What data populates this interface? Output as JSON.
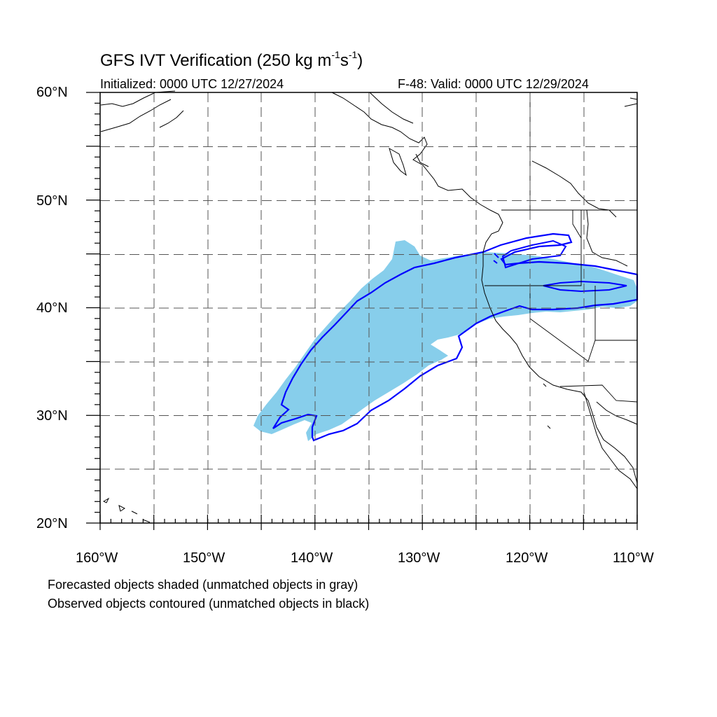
{
  "title": {
    "main": "GFS IVT Verification (250 kg m",
    "exp1": "-1",
    "mid": "s",
    "exp2": "-1",
    "close": ")"
  },
  "initialized": "Initialized: 0000 UTC 12/27/2024",
  "valid": "F-48: Valid: 0000 UTC 12/29/2024",
  "footnotes": {
    "line1": "Forecasted objects shaded (unmatched objects in gray)",
    "line2": "Observed objects contoured (unmatched objects in black)"
  },
  "axes": {
    "lat_labels": [
      "60°N",
      "50°N",
      "40°N",
      "30°N",
      "20°N"
    ],
    "lon_labels": [
      "160°W",
      "150°W",
      "140°W",
      "130°W",
      "120°W",
      "110°W"
    ],
    "lat_range": [
      20,
      60
    ],
    "lon_range": [
      -160,
      -110
    ],
    "grid": "dashed, every 5°"
  },
  "colors": {
    "forecast_fill": "#87ceeb",
    "observed_contour": "#0000ff",
    "coastline": "#000000",
    "grid": "#555555"
  },
  "objects": {
    "forecast_shaded": "matched forecast object (sky blue)",
    "observed_contour": "matched observed object (blue)"
  }
}
